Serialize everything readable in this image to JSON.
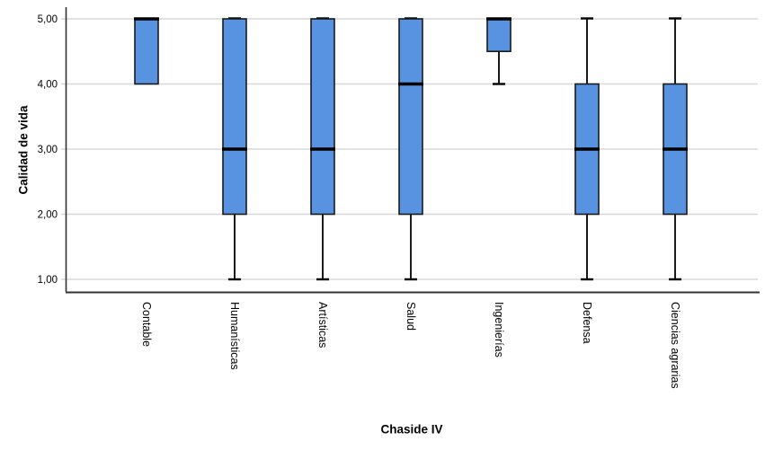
{
  "chart_data": {
    "type": "boxplot",
    "title": "",
    "xlabel": "Chaside IV",
    "ylabel": "Calidad de vida",
    "ylim": [
      1,
      5
    ],
    "grid": "horizontal-only",
    "legend": "none",
    "y_ticks": [
      {
        "label": "5,00",
        "value": 5
      },
      {
        "label": "4,00",
        "value": 4
      },
      {
        "label": "3,00",
        "value": 3
      },
      {
        "label": "2,00",
        "value": 2
      },
      {
        "label": "1,00",
        "value": 1
      }
    ],
    "categories": [
      "Contable",
      "Humanísticas",
      "Artísticas",
      "Salud",
      "Ingenierías",
      "Defensa",
      "Ciencias agrarias"
    ],
    "boxes": [
      {
        "whisker_low": 4.0,
        "q1": 4.0,
        "median": 5.0,
        "q3": 5.0,
        "whisker_high": 5.0,
        "lower_cap": false,
        "upper_cap": false
      },
      {
        "whisker_low": 1.0,
        "q1": 2.0,
        "median": 3.0,
        "q3": 5.0,
        "whisker_high": 5.0,
        "lower_cap": true,
        "upper_cap": true
      },
      {
        "whisker_low": 1.0,
        "q1": 2.0,
        "median": 3.0,
        "q3": 5.0,
        "whisker_high": 5.0,
        "lower_cap": true,
        "upper_cap": true
      },
      {
        "whisker_low": 1.0,
        "q1": 2.0,
        "median": 4.0,
        "q3": 5.0,
        "whisker_high": 5.0,
        "lower_cap": true,
        "upper_cap": true
      },
      {
        "whisker_low": 4.0,
        "q1": 4.5,
        "median": 5.0,
        "q3": 5.0,
        "whisker_high": 5.0,
        "lower_cap": true,
        "upper_cap": false
      },
      {
        "whisker_low": 1.0,
        "q1": 2.0,
        "median": 3.0,
        "q3": 4.0,
        "whisker_high": 5.0,
        "lower_cap": true,
        "upper_cap": true
      },
      {
        "whisker_low": 1.0,
        "q1": 2.0,
        "median": 3.0,
        "q3": 4.0,
        "whisker_high": 5.0,
        "lower_cap": true,
        "upper_cap": true
      }
    ],
    "colors": {
      "box_fill": "#5793E0",
      "box_border": "#1A1A1A",
      "median": "#000000",
      "whisker": "#000000",
      "gridline": "#D8D8D8",
      "axis": "#333333",
      "text": "#000000",
      "background": "#FFFFFF"
    }
  }
}
